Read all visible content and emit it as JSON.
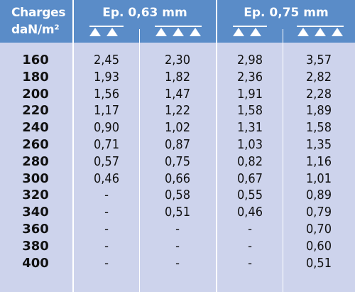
{
  "header": {
    "charges_line1": "Charges",
    "charges_line2": "daN/m²",
    "ep1": "Ep. 0,63 mm",
    "ep2": "Ep. 0,75 mm"
  },
  "icons": [
    "two-supports-icon",
    "three-supports-icon",
    "two-supports-icon",
    "three-supports-icon"
  ],
  "rows": [
    {
      "load": "160",
      "v": [
        "2,45",
        "2,30",
        "2,98",
        "3,57"
      ]
    },
    {
      "load": "180",
      "v": [
        "1,93",
        "1,82",
        "2,36",
        "2,82"
      ]
    },
    {
      "load": "200",
      "v": [
        "1,56",
        "1,47",
        "1,91",
        "2,28"
      ]
    },
    {
      "load": "220",
      "v": [
        "1,17",
        "1,22",
        "1,58",
        "1,89"
      ]
    },
    {
      "load": "240",
      "v": [
        "0,90",
        "1,02",
        "1,31",
        "1,58"
      ]
    },
    {
      "load": "260",
      "v": [
        "0,71",
        "0,87",
        "1,03",
        "1,35"
      ]
    },
    {
      "load": "280",
      "v": [
        "0,57",
        "0,75",
        "0,82",
        "1,16"
      ]
    },
    {
      "load": "300",
      "v": [
        "0,46",
        "0,66",
        "0,67",
        "1,01"
      ]
    },
    {
      "load": "320",
      "v": [
        "-",
        "0,58",
        "0,55",
        "0,89"
      ]
    },
    {
      "load": "340",
      "v": [
        "-",
        "0,51",
        "0,46",
        "0,79"
      ]
    },
    {
      "load": "360",
      "v": [
        "-",
        "-",
        "-",
        "0,70"
      ]
    },
    {
      "load": "380",
      "v": [
        "-",
        "-",
        "-",
        "0,60"
      ]
    },
    {
      "load": "400",
      "v": [
        "-",
        "-",
        "-",
        "0,51"
      ]
    }
  ],
  "colors": {
    "header": "#5a8cc8",
    "body": "#cdd3ec",
    "separator": "#ffffff"
  }
}
